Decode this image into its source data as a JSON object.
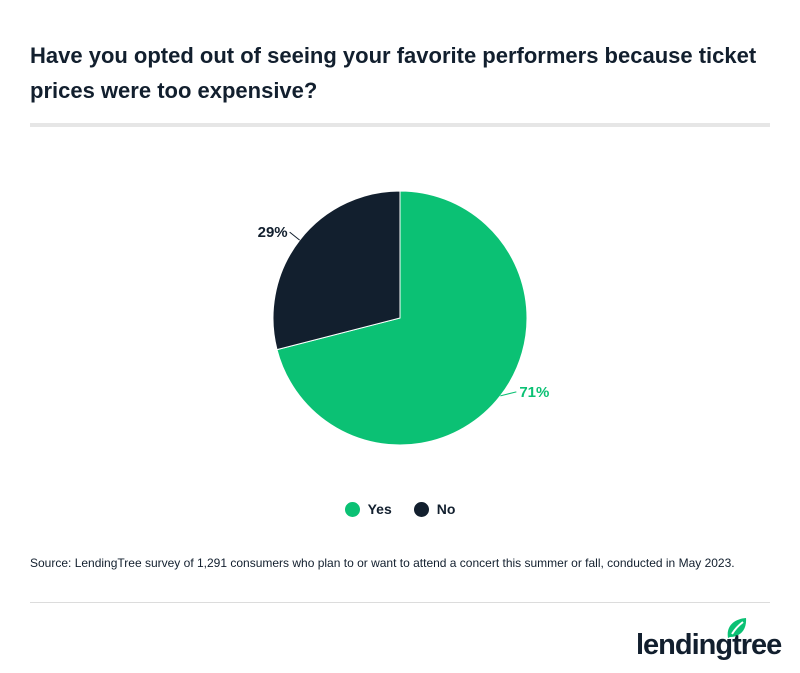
{
  "chart_data": {
    "type": "pie",
    "title": "Have you opted out of seeing your favorite performers because ticket prices were too expensive?",
    "categories": [
      "Yes",
      "No"
    ],
    "values": [
      71,
      29
    ],
    "labels": [
      "71%",
      "29%"
    ],
    "colors": [
      "#0bc174",
      "#121f2e"
    ],
    "legend_position": "bottom"
  },
  "legend": [
    {
      "label": "Yes",
      "color": "#0bc174"
    },
    {
      "label": "No",
      "color": "#121f2e"
    }
  ],
  "source": "Source: LendingTree survey of 1,291 consumers who plan to or want to attend a concert this summer or fall, conducted in May 2023.",
  "logo": {
    "text": "lendingtree",
    "icon": "leaf-icon",
    "color": "#0bc174"
  }
}
